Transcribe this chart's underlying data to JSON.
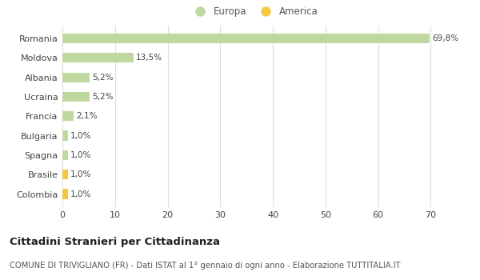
{
  "categories": [
    "Romania",
    "Moldova",
    "Albania",
    "Ucraina",
    "Francia",
    "Bulgaria",
    "Spagna",
    "Brasile",
    "Colombia"
  ],
  "values": [
    69.8,
    13.5,
    5.2,
    5.2,
    2.1,
    1.0,
    1.0,
    1.0,
    1.0
  ],
  "labels": [
    "69,8%",
    "13,5%",
    "5,2%",
    "5,2%",
    "2,1%",
    "1,0%",
    "1,0%",
    "1,0%",
    "1,0%"
  ],
  "colors": [
    "#bed8a0",
    "#bed8a0",
    "#bed8a0",
    "#bed8a0",
    "#bed8a0",
    "#bed8a0",
    "#bed8a0",
    "#f5c842",
    "#f5c842"
  ],
  "europa_color": "#bed8a0",
  "america_color": "#f5c842",
  "xlim": [
    0,
    73
  ],
  "xticks": [
    0,
    10,
    20,
    30,
    40,
    50,
    60,
    70
  ],
  "title": "Cittadini Stranieri per Cittadinanza",
  "subtitle": "COMUNE DI TRIVIGLIANO (FR) - Dati ISTAT al 1° gennaio di ogni anno - Elaborazione TUTTITALIA.IT",
  "legend_europa": "Europa",
  "legend_america": "America",
  "background_color": "#ffffff",
  "grid_color": "#dddddd",
  "bar_height": 0.5
}
